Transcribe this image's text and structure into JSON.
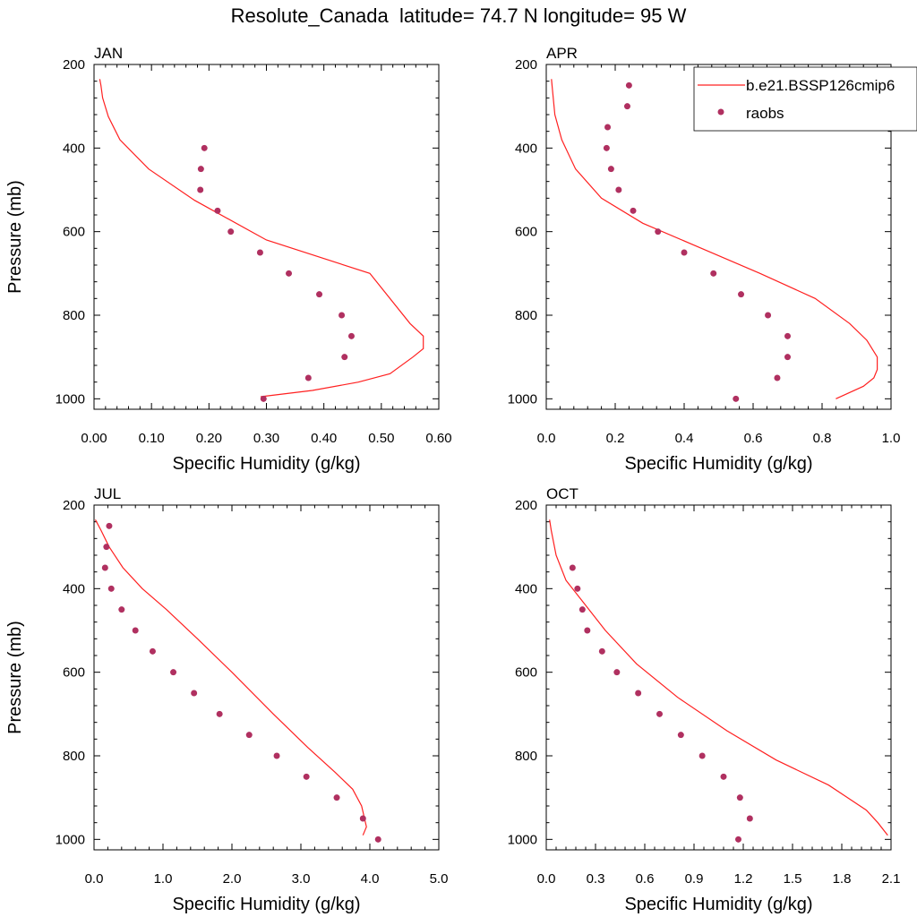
{
  "title": "Resolute_Canada  latitude= 74.7 N longitude= 95 W",
  "colors": {
    "model": "#ff2020",
    "obs": "#b03060",
    "axis": "#000000"
  },
  "legend": {
    "model_label": "b.e21.BSSP126cmip6",
    "obs_label": "raobs",
    "placement": "top-right of APR panel"
  },
  "chart_data": [
    {
      "type": "line",
      "panel": "JAN",
      "xlabel": "Specific Humidity (g/kg)",
      "ylabel": "Pressure (mb)",
      "xlim": [
        0,
        0.6
      ],
      "ylim": [
        200,
        1025
      ],
      "y_reversed": true,
      "xticks": [
        0,
        0.1,
        0.2,
        0.3,
        0.4,
        0.5,
        0.6
      ],
      "xtick_labels": [
        "0.00",
        "0.10",
        "0.20",
        "0.30",
        "0.40",
        "0.50",
        "0.60"
      ],
      "yticks": [
        200,
        400,
        600,
        800,
        1000
      ],
      "ytick_labels": [
        "200",
        "400",
        "600",
        "800",
        "1000"
      ],
      "model": {
        "name": "b.e21.BSSP126cmip6",
        "x": [
          0.01,
          0.012,
          0.015,
          0.025,
          0.045,
          0.095,
          0.175,
          0.3,
          0.48,
          0.55,
          0.573,
          0.573,
          0.555,
          0.515,
          0.46,
          0.38,
          0.29
        ],
        "p": [
          235,
          250,
          280,
          325,
          380,
          450,
          525,
          620,
          700,
          820,
          850,
          880,
          900,
          940,
          960,
          980,
          995
        ]
      },
      "obs": {
        "name": "raobs",
        "x": [
          0.192,
          0.186,
          0.185,
          0.215,
          0.238,
          0.289,
          0.339,
          0.392,
          0.431,
          0.448,
          0.436,
          0.373,
          0.295
        ],
        "p": [
          400,
          450,
          500,
          550,
          600,
          650,
          700,
          750,
          800,
          850,
          900,
          950,
          1000
        ]
      }
    },
    {
      "type": "line",
      "panel": "APR",
      "xlabel": "Specific Humidity (g/kg)",
      "ylabel": "",
      "xlim": [
        0,
        1.0
      ],
      "ylim": [
        200,
        1025
      ],
      "y_reversed": true,
      "xticks": [
        0,
        0.2,
        0.4,
        0.6,
        0.8,
        1.0
      ],
      "xtick_labels": [
        "0.0",
        "0.2",
        "0.4",
        "0.6",
        "0.8",
        "1.0"
      ],
      "yticks": [
        200,
        400,
        600,
        800,
        1000
      ],
      "ytick_labels": [
        "200",
        "400",
        "600",
        "800",
        "1000"
      ],
      "model": {
        "name": "b.e21.BSSP126cmip6",
        "x": [
          0.015,
          0.018,
          0.025,
          0.045,
          0.085,
          0.16,
          0.28,
          0.45,
          0.62,
          0.78,
          0.88,
          0.93,
          0.96,
          0.96,
          0.95,
          0.92,
          0.84
        ],
        "p": [
          235,
          260,
          320,
          380,
          450,
          520,
          580,
          640,
          700,
          760,
          820,
          860,
          900,
          930,
          950,
          970,
          1000
        ]
      },
      "obs": {
        "name": "raobs",
        "x": [
          0.24,
          0.235,
          0.178,
          0.175,
          0.188,
          0.21,
          0.252,
          0.324,
          0.4,
          0.485,
          0.565,
          0.643,
          0.7,
          0.7,
          0.67,
          0.55
        ],
        "p": [
          250,
          300,
          350,
          400,
          450,
          500,
          550,
          600,
          650,
          700,
          750,
          800,
          850,
          900,
          950,
          1000
        ]
      }
    },
    {
      "type": "line",
      "panel": "JUL",
      "xlabel": "Specific Humidity (g/kg)",
      "ylabel": "Pressure (mb)",
      "xlim": [
        0,
        5.0
      ],
      "ylim": [
        200,
        1025
      ],
      "y_reversed": true,
      "xticks": [
        0,
        1,
        2,
        3,
        4,
        5
      ],
      "xtick_labels": [
        "0.0",
        "1.0",
        "2.0",
        "3.0",
        "4.0",
        "5.0"
      ],
      "yticks": [
        200,
        400,
        600,
        800,
        1000
      ],
      "ytick_labels": [
        "200",
        "400",
        "600",
        "800",
        "1000"
      ],
      "model": {
        "name": "b.e21.BSSP126cmip6",
        "x": [
          0.02,
          0.1,
          0.22,
          0.42,
          0.7,
          1.05,
          1.5,
          2.0,
          2.6,
          3.1,
          3.5,
          3.75,
          3.88,
          3.95,
          3.9
        ],
        "p": [
          235,
          260,
          300,
          350,
          400,
          450,
          520,
          600,
          700,
          780,
          840,
          880,
          920,
          970,
          990
        ]
      },
      "obs": {
        "name": "raobs",
        "x": [
          0.22,
          0.18,
          0.16,
          0.25,
          0.4,
          0.6,
          0.85,
          1.15,
          1.45,
          1.82,
          2.25,
          2.65,
          3.08,
          3.52,
          3.9,
          4.12
        ],
        "p": [
          250,
          300,
          350,
          400,
          450,
          500,
          550,
          600,
          650,
          700,
          750,
          800,
          850,
          900,
          950,
          1000
        ]
      }
    },
    {
      "type": "line",
      "panel": "OCT",
      "xlabel": "Specific Humidity (g/kg)",
      "ylabel": "",
      "xlim": [
        0,
        2.1
      ],
      "ylim": [
        200,
        1025
      ],
      "y_reversed": true,
      "xticks": [
        0,
        0.3,
        0.6,
        0.9,
        1.2,
        1.5,
        1.8,
        2.1
      ],
      "xtick_labels": [
        "0.0",
        "0.3",
        "0.6",
        "0.9",
        "1.2",
        "1.5",
        "1.8",
        "2.1"
      ],
      "yticks": [
        200,
        400,
        600,
        800,
        1000
      ],
      "ytick_labels": [
        "200",
        "400",
        "600",
        "800",
        "1000"
      ],
      "model": {
        "name": "b.e21.BSSP126cmip6",
        "x": [
          0.02,
          0.03,
          0.06,
          0.12,
          0.22,
          0.36,
          0.55,
          0.8,
          1.1,
          1.4,
          1.72,
          1.95,
          2.02,
          2.08
        ],
        "p": [
          235,
          260,
          320,
          380,
          430,
          500,
          580,
          660,
          740,
          810,
          870,
          930,
          960,
          990
        ]
      },
      "obs": {
        "name": "raobs",
        "x": [
          0.16,
          0.19,
          0.22,
          0.25,
          0.34,
          0.43,
          0.56,
          0.69,
          0.82,
          0.95,
          1.08,
          1.18,
          1.24,
          1.17
        ],
        "p": [
          350,
          400,
          450,
          500,
          550,
          600,
          650,
          700,
          750,
          800,
          850,
          900,
          950,
          1000
        ]
      }
    }
  ]
}
